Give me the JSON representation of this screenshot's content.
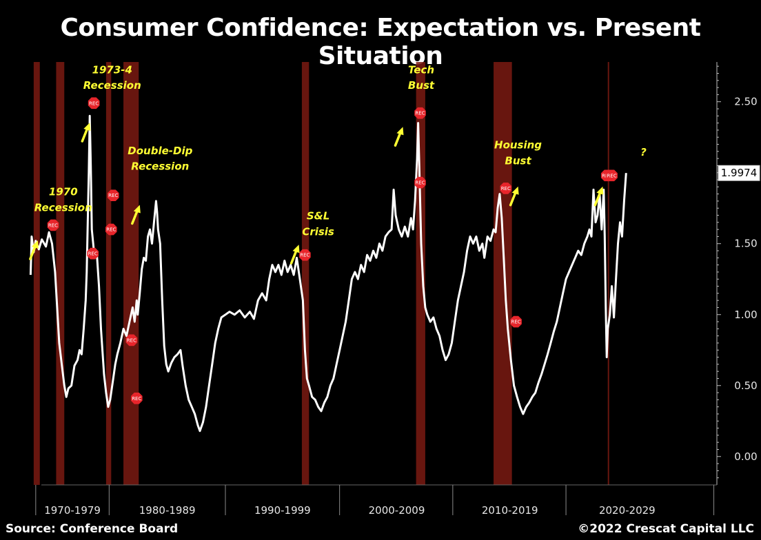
{
  "title": "Consumer Confidence: Expectation vs. Present Situation",
  "footer": {
    "source": "Source: Conference Board",
    "copyright": "©2022 Crescat Capital LLC"
  },
  "colors": {
    "background": "#000000",
    "line": "#ffffff",
    "recession": "#7a1a12",
    "marker": "#e8252b",
    "annotation": "#ffff33"
  },
  "chart_data": {
    "type": "line",
    "title": "Consumer Confidence: Expectation vs. Present Situation",
    "series": [
      {
        "name": "Expectation vs. Present Situation",
        "points": [
          [
            1967.5,
            1.28
          ],
          [
            1967.6,
            1.55
          ],
          [
            1967.8,
            1.44
          ],
          [
            1968.0,
            1.52
          ],
          [
            1968.3,
            1.46
          ],
          [
            1968.6,
            1.53
          ],
          [
            1969.0,
            1.48
          ],
          [
            1969.3,
            1.58
          ],
          [
            1969.6,
            1.5
          ],
          [
            1969.9,
            1.3
          ],
          [
            1970.1,
            1.05
          ],
          [
            1970.3,
            0.8
          ],
          [
            1970.6,
            0.62
          ],
          [
            1970.8,
            0.5
          ],
          [
            1971.0,
            0.42
          ],
          [
            1971.2,
            0.48
          ],
          [
            1971.5,
            0.5
          ],
          [
            1971.8,
            0.64
          ],
          [
            1972.1,
            0.68
          ],
          [
            1972.3,
            0.75
          ],
          [
            1972.5,
            0.72
          ],
          [
            1972.7,
            0.9
          ],
          [
            1972.9,
            1.1
          ],
          [
            1973.0,
            1.3
          ],
          [
            1973.1,
            1.65
          ],
          [
            1973.2,
            2.0
          ],
          [
            1973.3,
            2.4
          ],
          [
            1973.4,
            2.05
          ],
          [
            1973.5,
            1.6
          ],
          [
            1973.7,
            1.45
          ],
          [
            1974.0,
            1.42
          ],
          [
            1974.2,
            1.2
          ],
          [
            1974.4,
            0.9
          ],
          [
            1974.7,
            0.58
          ],
          [
            1974.9,
            0.45
          ],
          [
            1975.1,
            0.35
          ],
          [
            1975.3,
            0.4
          ],
          [
            1975.6,
            0.55
          ],
          [
            1975.8,
            0.65
          ],
          [
            1976.0,
            0.72
          ],
          [
            1976.3,
            0.8
          ],
          [
            1976.6,
            0.9
          ],
          [
            1976.9,
            0.85
          ],
          [
            1977.2,
            0.95
          ],
          [
            1977.5,
            1.05
          ],
          [
            1977.7,
            0.95
          ],
          [
            1977.9,
            1.1
          ],
          [
            1978.0,
            1.0
          ],
          [
            1978.2,
            1.15
          ],
          [
            1978.4,
            1.32
          ],
          [
            1978.6,
            1.4
          ],
          [
            1978.8,
            1.38
          ],
          [
            1979.0,
            1.55
          ],
          [
            1979.2,
            1.6
          ],
          [
            1979.4,
            1.5
          ],
          [
            1979.6,
            1.65
          ],
          [
            1979.8,
            1.8
          ],
          [
            1979.9,
            1.72
          ],
          [
            1980.0,
            1.6
          ],
          [
            1980.2,
            1.5
          ],
          [
            1980.4,
            1.1
          ],
          [
            1980.6,
            0.78
          ],
          [
            1980.8,
            0.65
          ],
          [
            1981.0,
            0.6
          ],
          [
            1981.3,
            0.66
          ],
          [
            1981.6,
            0.7
          ],
          [
            1981.9,
            0.72
          ],
          [
            1982.2,
            0.75
          ],
          [
            1982.4,
            0.64
          ],
          [
            1982.7,
            0.5
          ],
          [
            1983.0,
            0.4
          ],
          [
            1983.3,
            0.35
          ],
          [
            1983.6,
            0.3
          ],
          [
            1983.9,
            0.22
          ],
          [
            1984.1,
            0.18
          ],
          [
            1984.4,
            0.24
          ],
          [
            1984.7,
            0.35
          ],
          [
            1985.0,
            0.5
          ],
          [
            1985.3,
            0.65
          ],
          [
            1985.6,
            0.8
          ],
          [
            1985.9,
            0.9
          ],
          [
            1986.2,
            0.98
          ],
          [
            1986.6,
            1.0
          ],
          [
            1987.0,
            1.02
          ],
          [
            1987.5,
            1.0
          ],
          [
            1988.0,
            1.03
          ],
          [
            1988.5,
            0.98
          ],
          [
            1989.0,
            1.02
          ],
          [
            1989.4,
            0.97
          ],
          [
            1989.8,
            1.1
          ],
          [
            1990.2,
            1.15
          ],
          [
            1990.6,
            1.1
          ],
          [
            1990.9,
            1.25
          ],
          [
            1991.2,
            1.35
          ],
          [
            1991.5,
            1.3
          ],
          [
            1991.8,
            1.35
          ],
          [
            1992.1,
            1.28
          ],
          [
            1992.4,
            1.38
          ],
          [
            1992.7,
            1.3
          ],
          [
            1993.0,
            1.35
          ],
          [
            1993.3,
            1.28
          ],
          [
            1993.6,
            1.4
          ],
          [
            1993.9,
            1.25
          ],
          [
            1994.2,
            1.1
          ],
          [
            1994.4,
            0.75
          ],
          [
            1994.6,
            0.55
          ],
          [
            1994.8,
            0.5
          ],
          [
            1995.1,
            0.42
          ],
          [
            1995.4,
            0.4
          ],
          [
            1995.7,
            0.35
          ],
          [
            1996.0,
            0.32
          ],
          [
            1996.3,
            0.38
          ],
          [
            1996.6,
            0.42
          ],
          [
            1996.9,
            0.5
          ],
          [
            1997.2,
            0.55
          ],
          [
            1997.5,
            0.65
          ],
          [
            1997.8,
            0.75
          ],
          [
            1998.1,
            0.85
          ],
          [
            1998.4,
            0.95
          ],
          [
            1998.7,
            1.1
          ],
          [
            1999.0,
            1.25
          ],
          [
            1999.3,
            1.3
          ],
          [
            1999.6,
            1.25
          ],
          [
            1999.9,
            1.35
          ],
          [
            2000.2,
            1.3
          ],
          [
            2000.5,
            1.42
          ],
          [
            2000.8,
            1.38
          ],
          [
            2001.1,
            1.45
          ],
          [
            2001.4,
            1.4
          ],
          [
            2001.7,
            1.5
          ],
          [
            2002.0,
            1.45
          ],
          [
            2002.3,
            1.55
          ],
          [
            2002.6,
            1.58
          ],
          [
            2002.9,
            1.6
          ],
          [
            2003.1,
            1.88
          ],
          [
            2003.3,
            1.7
          ],
          [
            2003.6,
            1.6
          ],
          [
            2003.9,
            1.55
          ],
          [
            2004.2,
            1.62
          ],
          [
            2004.5,
            1.55
          ],
          [
            2004.8,
            1.68
          ],
          [
            2005.0,
            1.6
          ],
          [
            2005.2,
            1.8
          ],
          [
            2005.4,
            2.1
          ],
          [
            2005.5,
            2.35
          ],
          [
            2005.6,
            2.1
          ],
          [
            2005.8,
            1.5
          ],
          [
            2006.0,
            1.2
          ],
          [
            2006.2,
            1.05
          ],
          [
            2006.4,
            1.0
          ],
          [
            2006.7,
            0.95
          ],
          [
            2007.0,
            0.98
          ],
          [
            2007.3,
            0.9
          ],
          [
            2007.6,
            0.85
          ],
          [
            2007.9,
            0.75
          ],
          [
            2008.2,
            0.68
          ],
          [
            2008.5,
            0.72
          ],
          [
            2008.8,
            0.8
          ],
          [
            2009.1,
            0.95
          ],
          [
            2009.4,
            1.1
          ],
          [
            2009.7,
            1.2
          ],
          [
            2010.0,
            1.3
          ],
          [
            2010.3,
            1.45
          ],
          [
            2010.6,
            1.55
          ],
          [
            2010.9,
            1.5
          ],
          [
            2011.2,
            1.55
          ],
          [
            2011.5,
            1.45
          ],
          [
            2011.8,
            1.5
          ],
          [
            2012.0,
            1.4
          ],
          [
            2012.3,
            1.55
          ],
          [
            2012.6,
            1.52
          ],
          [
            2012.9,
            1.6
          ],
          [
            2013.1,
            1.58
          ],
          [
            2013.3,
            1.75
          ],
          [
            2013.5,
            1.85
          ],
          [
            2013.7,
            1.68
          ],
          [
            2013.9,
            1.4
          ],
          [
            2014.1,
            1.1
          ],
          [
            2014.3,
            0.9
          ],
          [
            2014.6,
            0.68
          ],
          [
            2014.9,
            0.5
          ],
          [
            2015.2,
            0.42
          ],
          [
            2015.5,
            0.35
          ],
          [
            2015.8,
            0.3
          ],
          [
            2016.1,
            0.35
          ],
          [
            2016.4,
            0.38
          ],
          [
            2016.7,
            0.42
          ],
          [
            2017.0,
            0.45
          ],
          [
            2017.3,
            0.52
          ],
          [
            2017.6,
            0.58
          ],
          [
            2017.9,
            0.65
          ],
          [
            2018.2,
            0.72
          ],
          [
            2018.5,
            0.8
          ],
          [
            2018.8,
            0.88
          ],
          [
            2019.1,
            0.95
          ],
          [
            2019.4,
            1.05
          ],
          [
            2019.7,
            1.15
          ],
          [
            2020.0,
            1.25
          ],
          [
            2020.3,
            1.3
          ],
          [
            2020.6,
            1.35
          ],
          [
            2020.9,
            1.4
          ],
          [
            2021.2,
            1.45
          ],
          [
            2021.5,
            1.42
          ],
          [
            2021.8,
            1.5
          ],
          [
            2022.1,
            1.55
          ],
          [
            2022.3,
            1.6
          ],
          [
            2022.5,
            1.55
          ],
          [
            2022.7,
            1.88
          ],
          [
            2022.9,
            1.65
          ],
          [
            2023.1,
            1.7
          ],
          [
            2023.3,
            1.85
          ],
          [
            2023.5,
            1.6
          ],
          [
            2023.7,
            1.88
          ],
          [
            2023.8,
            1.55
          ],
          [
            2023.9,
            1.05
          ],
          [
            2024.0,
            0.7
          ],
          [
            2024.1,
            0.9
          ],
          [
            2024.3,
            1.0
          ],
          [
            2024.5,
            1.2
          ],
          [
            2024.7,
            0.98
          ],
          [
            2024.9,
            1.25
          ],
          [
            2025.1,
            1.5
          ],
          [
            2025.3,
            1.65
          ],
          [
            2025.5,
            1.55
          ],
          [
            2025.7,
            1.8
          ],
          [
            2025.9,
            1.9974
          ]
        ]
      }
    ],
    "xlim": [
      1967.2,
      2034.8
    ],
    "ylim": [
      -0.2,
      2.78
    ],
    "y_ticks": [
      {
        "value": 2.5,
        "label": "2.50"
      },
      {
        "value": 2.0,
        "label": "2.00"
      },
      {
        "value": 1.5,
        "label": "1.50"
      },
      {
        "value": 1.0,
        "label": "1.00"
      },
      {
        "value": 0.5,
        "label": "0.50"
      },
      {
        "value": 0.0,
        "label": "0.00"
      }
    ],
    "last_value_label": "1.9974",
    "last_value": 1.9974,
    "decade_boundaries": [
      1968.0,
      1975.2,
      1986.6,
      1997.8,
      2008.9,
      2020.0,
      2034.5
    ],
    "decade_labels": [
      {
        "label": "1970-1979",
        "center": 1971.6
      },
      {
        "label": "1980-1989",
        "center": 1980.9
      },
      {
        "label": "1990-1999",
        "center": 1992.2
      },
      {
        "label": "2000-2009",
        "center": 2003.4
      },
      {
        "label": "2010-2019",
        "center": 2014.5
      },
      {
        "label": "2020-2029",
        "center": 2026.0
      }
    ],
    "recessions": [
      [
        1967.8,
        1968.4
      ],
      [
        1970.0,
        1970.8
      ],
      [
        1974.9,
        1975.4
      ],
      [
        1976.6,
        1978.1
      ],
      [
        1994.1,
        1994.8
      ],
      [
        2005.3,
        2006.2
      ],
      [
        2012.9,
        2014.7
      ],
      [
        2024.1,
        2024.2
      ]
    ],
    "markers": [
      {
        "x": 1969.7,
        "y": 1.63,
        "label": "REC"
      },
      {
        "x": 1973.7,
        "y": 2.49,
        "label": "REC"
      },
      {
        "x": 1973.6,
        "y": 1.43,
        "label": "REC"
      },
      {
        "x": 1975.6,
        "y": 1.84,
        "label": "REC"
      },
      {
        "x": 1975.4,
        "y": 1.6,
        "label": "REC"
      },
      {
        "x": 1977.4,
        "y": 0.82,
        "label": "REC"
      },
      {
        "x": 1977.9,
        "y": 0.41,
        "label": "REC"
      },
      {
        "x": 1994.4,
        "y": 1.42,
        "label": "REC"
      },
      {
        "x": 2005.7,
        "y": 2.42,
        "label": "REC"
      },
      {
        "x": 2005.7,
        "y": 1.93,
        "label": "REC"
      },
      {
        "x": 2014.1,
        "y": 1.89,
        "label": "REC"
      },
      {
        "x": 2015.1,
        "y": 0.95,
        "label": "REC"
      },
      {
        "x": 2024.0,
        "y": 1.98,
        "label": "REC"
      },
      {
        "x": 2024.5,
        "y": 1.98,
        "label": "REC"
      }
    ],
    "annotations": [
      {
        "text": "1970",
        "x": 1970.7,
        "y": 1.84
      },
      {
        "text": "Recession",
        "x": 1970.7,
        "y": 1.73
      },
      {
        "text": "1973-4",
        "x": 1975.5,
        "y": 2.7
      },
      {
        "text": "Recession",
        "x": 1975.5,
        "y": 2.59
      },
      {
        "text": "Double-Dip",
        "x": 1980.2,
        "y": 2.13
      },
      {
        "text": "Recession",
        "x": 1980.2,
        "y": 2.02
      },
      {
        "text": "S&L",
        "x": 1995.7,
        "y": 1.67
      },
      {
        "text": "Crisis",
        "x": 1995.7,
        "y": 1.56
      },
      {
        "text": "Tech",
        "x": 2005.8,
        "y": 2.7
      },
      {
        "text": "Bust",
        "x": 2005.8,
        "y": 2.59
      },
      {
        "text": "Housing",
        "x": 2015.3,
        "y": 2.17
      },
      {
        "text": "Bust",
        "x": 2015.3,
        "y": 2.06
      },
      {
        "text": "?",
        "x": 2027.6,
        "y": 2.12
      }
    ],
    "arrows": [
      {
        "x": 1967.8,
        "y": 1.45
      },
      {
        "x": 1972.9,
        "y": 2.28
      },
      {
        "x": 1977.8,
        "y": 1.7
      },
      {
        "x": 1993.4,
        "y": 1.42
      },
      {
        "x": 2003.6,
        "y": 2.25
      },
      {
        "x": 2014.9,
        "y": 1.83
      },
      {
        "x": 2023.2,
        "y": 1.83
      }
    ]
  }
}
